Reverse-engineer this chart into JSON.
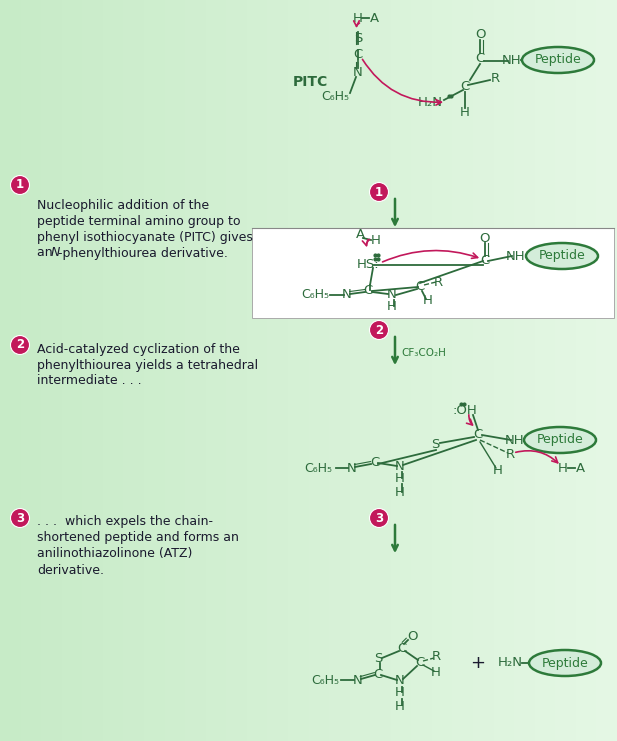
{
  "bg_left": "#b8dcb8",
  "bg_right": "#d8efd4",
  "chem": "#2d6b3c",
  "crimson": "#c2185b",
  "dark_green": "#2d7a3a",
  "step1_text": [
    "① Nucleophilic addition of the",
    "   peptide terminal amino group to",
    "   phenyl isothiocyanate (PITC) gives",
    "   an N-phenylthiourea derivative."
  ],
  "step2_text": [
    "② Acid-catalyzed cyclization of the",
    "   phenylthiourea yields a tetrahedral",
    "   intermediate . . ."
  ],
  "step3_text": [
    "③ . . .  which expels the chain-",
    "   shortened peptide and forms an",
    "   anilinothiazolinone (ATZ)",
    "   derivative."
  ]
}
